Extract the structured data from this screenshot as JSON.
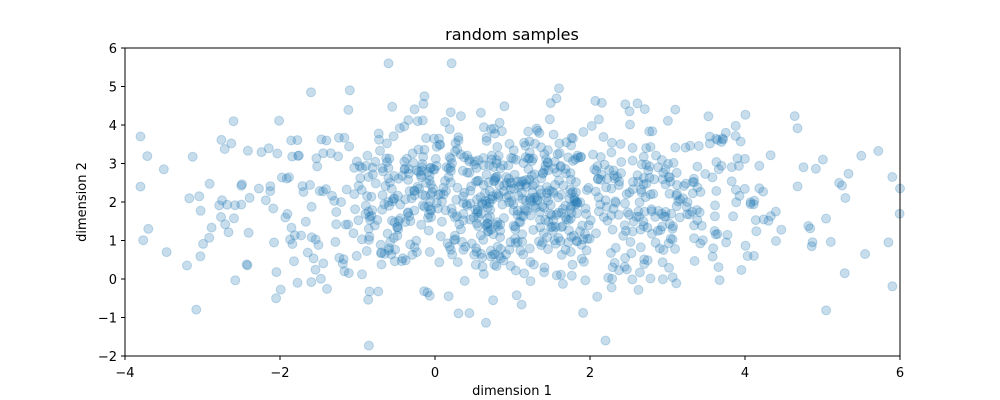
{
  "chart_data": {
    "type": "scatter",
    "title": "random samples",
    "xlabel": "dimension 1",
    "ylabel": "dimension 2",
    "xlim": [
      -4,
      6
    ],
    "ylim": [
      -2,
      6
    ],
    "xticks": [
      -4,
      -2,
      0,
      2,
      4,
      6
    ],
    "yticks": [
      -2,
      -1,
      0,
      1,
      2,
      3,
      4,
      5,
      6
    ],
    "xtick_labels": [
      "−4",
      "−2",
      "0",
      "2",
      "4",
      "6"
    ],
    "ytick_labels": [
      "−2",
      "−1",
      "0",
      "1",
      "2",
      "3",
      "4",
      "5",
      "6"
    ],
    "grid": false,
    "marker_color": "#1f77b4",
    "marker_alpha": 0.25,
    "approx_point_count": 1000,
    "distribution": {
      "x_mean": 1.0,
      "x_std": 1.8,
      "y_mean": 2.0,
      "y_std": 1.1
    },
    "highlighted_points": [
      {
        "x": -0.6,
        "y": 5.6
      },
      {
        "x": 1.6,
        "y": 4.95
      },
      {
        "x": -1.1,
        "y": 4.9
      },
      {
        "x": -1.6,
        "y": 4.85
      },
      {
        "x": -0.15,
        "y": 4.55
      },
      {
        "x": 3.1,
        "y": 4.4
      },
      {
        "x": -2.6,
        "y": 4.1
      },
      {
        "x": -3.8,
        "y": 3.7
      },
      {
        "x": -3.5,
        "y": 2.85
      },
      {
        "x": -3.8,
        "y": 2.4
      },
      {
        "x": -3.7,
        "y": 1.3
      },
      {
        "x": -3.2,
        "y": 0.35
      },
      {
        "x": -2.05,
        "y": -0.5
      },
      {
        "x": 0.75,
        "y": -0.55
      },
      {
        "x": 2.2,
        "y": -1.6
      },
      {
        "x": 5.9,
        "y": 2.65
      },
      {
        "x": 6.0,
        "y": 2.35
      },
      {
        "x": 5.85,
        "y": 0.95
      },
      {
        "x": 5.5,
        "y": 3.2
      },
      {
        "x": 5.55,
        "y": 0.65
      }
    ]
  }
}
